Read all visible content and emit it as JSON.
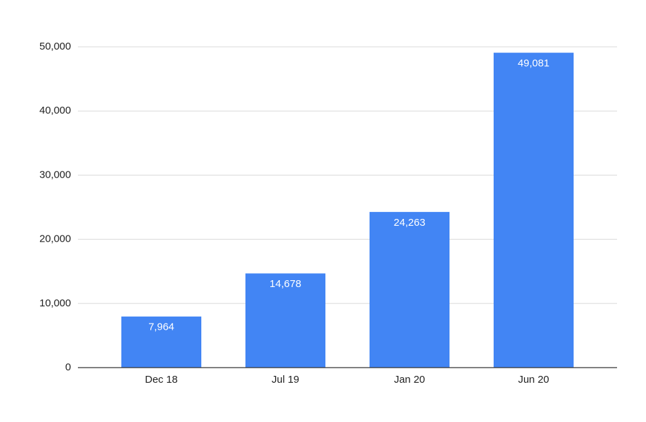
{
  "chart_data": {
    "type": "bar",
    "categories": [
      "Dec 18",
      "Jul 19",
      "Jan 20",
      "Jun 20"
    ],
    "values": [
      7964,
      14678,
      24263,
      49081
    ],
    "value_labels": [
      "7,964",
      "14,678",
      "24,263",
      "49,081"
    ],
    "color": "#4285f4",
    "ylim": [
      0,
      50000
    ],
    "yticks": [
      0,
      {
        "value": 10000,
        "label": "10,000"
      },
      {
        "value": 20000,
        "label": "20,000"
      },
      {
        "value": 30000,
        "label": "30,000"
      },
      {
        "value": 40000,
        "label": "40,000"
      },
      {
        "value": 50000,
        "label": "50,000"
      }
    ],
    "grid": true
  }
}
